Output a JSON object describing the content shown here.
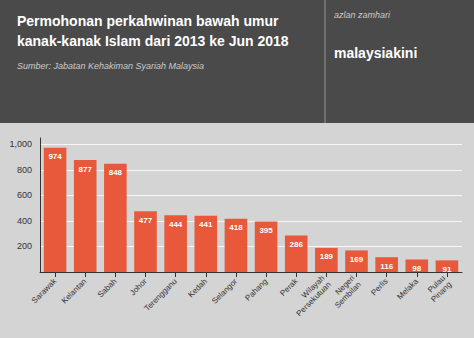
{
  "chart_data": {
    "type": "bar",
    "title": "Permohonan perkahwinan bawah umur\nkanak-kanak Islam dari 2013 ke Jun 2018",
    "subtitle": "Sumber: Jabatan Kehakiman Syariah Malaysia",
    "annotations": [
      "azlan zamhari",
      "malaysiakini"
    ],
    "categories": [
      "Sarawak",
      "Kelantan",
      "Sabah",
      "Johor",
      "Terengganu",
      "Kedah",
      "Selangor",
      "Pahang",
      "Perak",
      "Wilayah\nPersekutuan",
      "Negeri\nSembilan",
      "Perlis",
      "Melaka",
      "Pulau\nPinang"
    ],
    "values": [
      974,
      877,
      848,
      477,
      444,
      441,
      418,
      395,
      286,
      189,
      169,
      116,
      98,
      91
    ],
    "color": "#e8583a",
    "ylim": [
      0,
      1050
    ],
    "yticks": [
      200,
      400,
      600,
      800,
      {
        "value": 1000,
        "label": "1,000"
      }
    ],
    "grid": true,
    "data_labels": true
  }
}
